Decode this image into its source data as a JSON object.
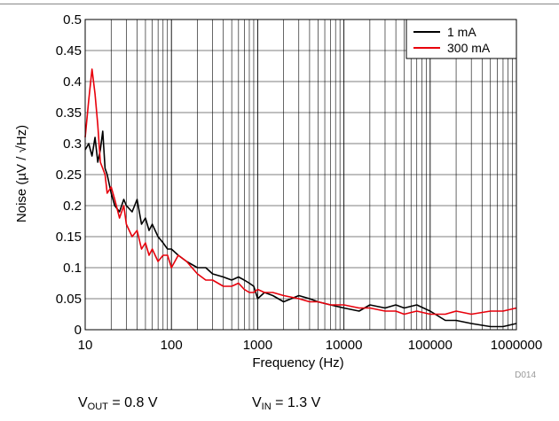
{
  "chart_data": {
    "type": "line",
    "xlabel": "Frequency (Hz)",
    "ylabel": "Noise (µV / √Hz)",
    "x_scale": "log",
    "xlim": [
      10,
      1000000
    ],
    "ylim": [
      0,
      0.5
    ],
    "x_ticks": [
      "10",
      "100",
      "1000",
      "10000",
      "100000",
      "1000000"
    ],
    "y_ticks": [
      "0",
      "0.05",
      "0.1",
      "0.15",
      "0.2",
      "0.25",
      "0.3",
      "0.35",
      "0.4",
      "0.45",
      "0.5"
    ],
    "grid": true,
    "legend_position": "top-right",
    "figure_id": "D014",
    "series": [
      {
        "name": "1 mA",
        "color": "#000000",
        "x": [
          10,
          11,
          12,
          13,
          14,
          15,
          16,
          17,
          18,
          20,
          22,
          25,
          28,
          30,
          35,
          40,
          45,
          50,
          55,
          60,
          70,
          80,
          90,
          100,
          120,
          150,
          200,
          250,
          300,
          400,
          500,
          600,
          700,
          800,
          900,
          1000,
          1200,
          1500,
          2000,
          3000,
          4000,
          5000,
          7000,
          10000,
          15000,
          20000,
          30000,
          40000,
          50000,
          70000,
          100000,
          150000,
          200000,
          300000,
          500000,
          700000,
          1000000
        ],
        "y": [
          0.29,
          0.3,
          0.28,
          0.31,
          0.27,
          0.29,
          0.32,
          0.26,
          0.25,
          0.22,
          0.2,
          0.19,
          0.21,
          0.2,
          0.19,
          0.21,
          0.17,
          0.18,
          0.16,
          0.17,
          0.15,
          0.14,
          0.13,
          0.13,
          0.12,
          0.11,
          0.1,
          0.1,
          0.09,
          0.085,
          0.08,
          0.085,
          0.08,
          0.075,
          0.07,
          0.05,
          0.06,
          0.055,
          0.045,
          0.055,
          0.05,
          0.045,
          0.04,
          0.035,
          0.03,
          0.04,
          0.035,
          0.04,
          0.035,
          0.04,
          0.03,
          0.015,
          0.015,
          0.01,
          0.005,
          0.005,
          0.01
        ]
      },
      {
        "name": "300 mA",
        "color": "#e8000b",
        "x": [
          10,
          11,
          12,
          13,
          14,
          15,
          16,
          17,
          18,
          20,
          22,
          25,
          28,
          30,
          35,
          40,
          45,
          50,
          55,
          60,
          70,
          80,
          90,
          100,
          120,
          150,
          200,
          250,
          300,
          400,
          500,
          600,
          700,
          800,
          900,
          1000,
          1200,
          1500,
          2000,
          3000,
          4000,
          5000,
          7000,
          10000,
          15000,
          20000,
          30000,
          40000,
          50000,
          70000,
          100000,
          150000,
          200000,
          300000,
          500000,
          700000,
          1000000
        ],
        "y": [
          0.31,
          0.37,
          0.42,
          0.38,
          0.33,
          0.27,
          0.26,
          0.25,
          0.22,
          0.23,
          0.21,
          0.18,
          0.2,
          0.17,
          0.15,
          0.16,
          0.13,
          0.14,
          0.12,
          0.13,
          0.11,
          0.12,
          0.12,
          0.1,
          0.12,
          0.11,
          0.09,
          0.08,
          0.08,
          0.07,
          0.07,
          0.075,
          0.065,
          0.06,
          0.06,
          0.065,
          0.06,
          0.06,
          0.055,
          0.05,
          0.045,
          0.045,
          0.04,
          0.04,
          0.035,
          0.035,
          0.03,
          0.03,
          0.025,
          0.03,
          0.025,
          0.025,
          0.03,
          0.025,
          0.03,
          0.03,
          0.035
        ]
      }
    ]
  },
  "conditions": {
    "vout_label": "V",
    "vout_sub": "OUT",
    "vout_value": " = 0.8 V",
    "vin_label": "V",
    "vin_sub": "IN",
    "vin_value": " = 1.3 V"
  }
}
